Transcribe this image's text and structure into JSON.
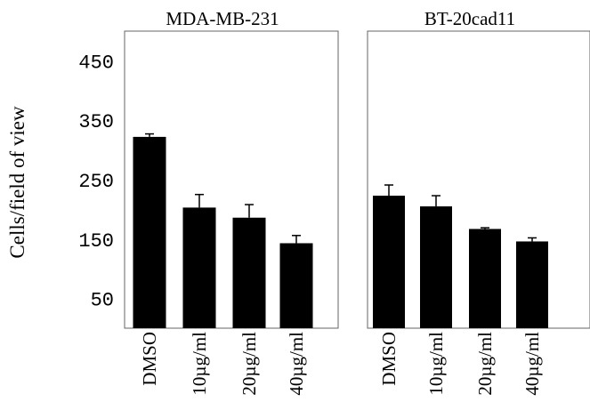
{
  "y_axis_label": "Cells/field of view",
  "chart_data": [
    {
      "type": "bar",
      "title": "MDA-MB-231",
      "categories": [
        "DMSO",
        "10µg/ml",
        "20µg/ml",
        "40µg/ml"
      ],
      "values": [
        322,
        203,
        186,
        143
      ],
      "errors": [
        5,
        22,
        22,
        13
      ],
      "ylabel": "Cells/field of view",
      "yticks": [
        50,
        150,
        250,
        350,
        450
      ],
      "ylim": [
        0,
        500
      ],
      "grid": false,
      "bar_color": "#000000"
    },
    {
      "type": "bar",
      "title": "BT-20cad11",
      "categories": [
        "DMSO",
        "10µg/ml",
        "20µg/ml",
        "40µg/ml"
      ],
      "values": [
        223,
        205,
        167,
        146
      ],
      "errors": [
        18,
        18,
        2,
        6
      ],
      "yticks": [
        50,
        150,
        250,
        350,
        450
      ],
      "ylim": [
        0,
        500
      ],
      "grid": false,
      "bar_color": "#000000"
    }
  ]
}
